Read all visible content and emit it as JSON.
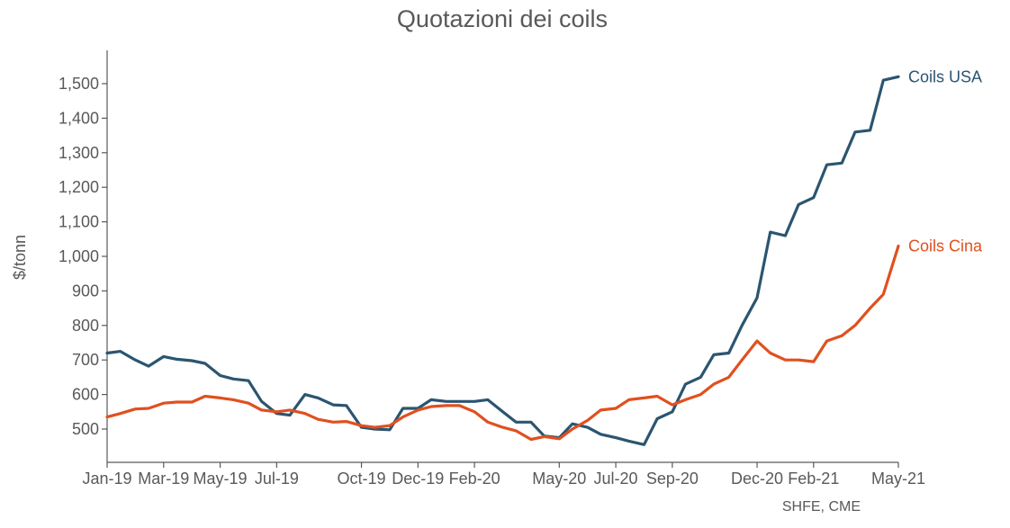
{
  "chart_data": {
    "type": "line",
    "title": "Quotazioni dei coils",
    "ylabel": "$/tonn",
    "xlabel": "",
    "source": "SHFE, CME",
    "ylim": [
      400,
      1600
    ],
    "y_ticks": [
      500,
      600,
      700,
      800,
      900,
      1000,
      1100,
      1200,
      1300,
      1400,
      1500
    ],
    "y_tick_labels": [
      "500",
      "600",
      "700",
      "800",
      "900",
      "1,000",
      "1,100",
      "1,200",
      "1,300",
      "1,400",
      "1,500"
    ],
    "x_ticks": [
      "2019-01",
      "2019-03",
      "2019-05",
      "2019-07",
      "2019-10",
      "2019-12",
      "2020-02",
      "2020-05",
      "2020-07",
      "2020-09",
      "2020-12",
      "2021-02",
      "2021-05"
    ],
    "x_tick_labels": [
      "Jan-19",
      "Mar-19",
      "May-19",
      "Jul-19",
      "Oct-19",
      "Dec-19",
      "Feb-20",
      "May-20",
      "Jul-20",
      "Sep-20",
      "Dec-20",
      "Feb-21",
      "May-21"
    ],
    "grid": false,
    "legend": "end-of-line labels",
    "series": [
      {
        "name": "Coils USA",
        "color": "#2b5570",
        "points": [
          [
            "2019-01",
            720
          ],
          [
            "2019-01-15",
            725
          ],
          [
            "2019-02",
            700
          ],
          [
            "2019-02-15",
            682
          ],
          [
            "2019-03",
            710
          ],
          [
            "2019-03-15",
            702
          ],
          [
            "2019-04",
            698
          ],
          [
            "2019-04-15",
            690
          ],
          [
            "2019-05",
            655
          ],
          [
            "2019-05-15",
            645
          ],
          [
            "2019-06",
            640
          ],
          [
            "2019-06-15",
            580
          ],
          [
            "2019-07",
            545
          ],
          [
            "2019-07-15",
            540
          ],
          [
            "2019-08",
            600
          ],
          [
            "2019-08-15",
            590
          ],
          [
            "2019-09",
            570
          ],
          [
            "2019-09-15",
            568
          ],
          [
            "2019-10",
            505
          ],
          [
            "2019-10-15",
            500
          ],
          [
            "2019-11",
            498
          ],
          [
            "2019-11-15",
            560
          ],
          [
            "2019-12",
            560
          ],
          [
            "2019-12-15",
            585
          ],
          [
            "2020-01",
            580
          ],
          [
            "2020-01-15",
            580
          ],
          [
            "2020-02",
            580
          ],
          [
            "2020-02-15",
            585
          ],
          [
            "2020-03",
            550
          ],
          [
            "2020-03-15",
            520
          ],
          [
            "2020-04",
            520
          ],
          [
            "2020-04-15",
            480
          ],
          [
            "2020-05",
            475
          ],
          [
            "2020-05-15",
            515
          ],
          [
            "2020-06",
            505
          ],
          [
            "2020-06-15",
            485
          ],
          [
            "2020-07",
            475
          ],
          [
            "2020-07-15",
            465
          ],
          [
            "2020-08",
            455
          ],
          [
            "2020-08-15",
            530
          ],
          [
            "2020-09",
            550
          ],
          [
            "2020-09-15",
            630
          ],
          [
            "2020-10",
            650
          ],
          [
            "2020-10-15",
            715
          ],
          [
            "2020-11",
            720
          ],
          [
            "2020-11-15",
            800
          ],
          [
            "2020-12",
            880
          ],
          [
            "2020-12-15",
            1070
          ],
          [
            "2021-01",
            1060
          ],
          [
            "2021-01-15",
            1150
          ],
          [
            "2021-02",
            1170
          ],
          [
            "2021-02-15",
            1265
          ],
          [
            "2021-03",
            1270
          ],
          [
            "2021-03-15",
            1360
          ],
          [
            "2021-04",
            1365
          ],
          [
            "2021-04-15",
            1510
          ],
          [
            "2021-05",
            1520
          ]
        ]
      },
      {
        "name": "Coils Cina",
        "color": "#e0501f",
        "points": [
          [
            "2019-01",
            535
          ],
          [
            "2019-01-15",
            545
          ],
          [
            "2019-02",
            558
          ],
          [
            "2019-02-15",
            560
          ],
          [
            "2019-03",
            575
          ],
          [
            "2019-03-15",
            578
          ],
          [
            "2019-04",
            578
          ],
          [
            "2019-04-15",
            595
          ],
          [
            "2019-05",
            590
          ],
          [
            "2019-05-15",
            585
          ],
          [
            "2019-06",
            575
          ],
          [
            "2019-06-15",
            555
          ],
          [
            "2019-07",
            550
          ],
          [
            "2019-07-15",
            555
          ],
          [
            "2019-08",
            545
          ],
          [
            "2019-08-15",
            528
          ],
          [
            "2019-09",
            520
          ],
          [
            "2019-09-15",
            522
          ],
          [
            "2019-10",
            510
          ],
          [
            "2019-10-15",
            505
          ],
          [
            "2019-11",
            510
          ],
          [
            "2019-11-15",
            535
          ],
          [
            "2019-12",
            555
          ],
          [
            "2019-12-15",
            565
          ],
          [
            "2020-01",
            568
          ],
          [
            "2020-01-15",
            568
          ],
          [
            "2020-02",
            550
          ],
          [
            "2020-02-15",
            520
          ],
          [
            "2020-03",
            505
          ],
          [
            "2020-03-15",
            495
          ],
          [
            "2020-04",
            470
          ],
          [
            "2020-04-15",
            478
          ],
          [
            "2020-05",
            472
          ],
          [
            "2020-05-15",
            500
          ],
          [
            "2020-06",
            525
          ],
          [
            "2020-06-15",
            555
          ],
          [
            "2020-07",
            560
          ],
          [
            "2020-07-15",
            585
          ],
          [
            "2020-08",
            590
          ],
          [
            "2020-08-15",
            595
          ],
          [
            "2020-09",
            570
          ],
          [
            "2020-09-15",
            585
          ],
          [
            "2020-10",
            600
          ],
          [
            "2020-10-15",
            630
          ],
          [
            "2020-11",
            650
          ],
          [
            "2020-11-15",
            700
          ],
          [
            "2020-12",
            755
          ],
          [
            "2020-12-15",
            720
          ],
          [
            "2021-01",
            700
          ],
          [
            "2021-01-15",
            700
          ],
          [
            "2021-02",
            695
          ],
          [
            "2021-02-15",
            755
          ],
          [
            "2021-03",
            770
          ],
          [
            "2021-03-15",
            800
          ],
          [
            "2021-04",
            850
          ],
          [
            "2021-04-15",
            890
          ],
          [
            "2021-05",
            1030
          ]
        ]
      }
    ]
  }
}
